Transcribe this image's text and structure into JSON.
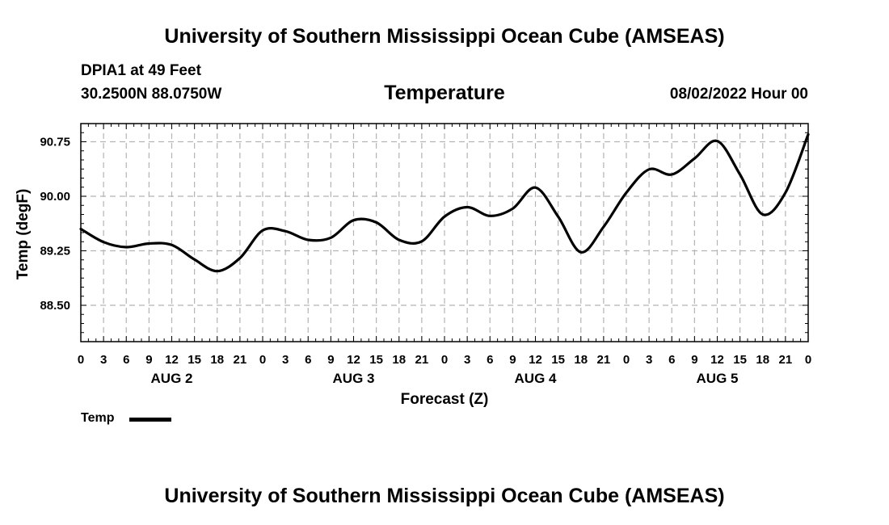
{
  "titles": {
    "top": "University of Southern Mississippi Ocean Cube (AMSEAS)",
    "bottom": "University of Southern Mississippi Ocean Cube (AMSEAS)"
  },
  "header": {
    "station": "DPIA1 at 49 Feet",
    "coords": "30.2500N  88.0750W",
    "variable": "Temperature",
    "datestamp": "08/02/2022 Hour 00"
  },
  "legend": {
    "label": "Temp"
  },
  "colors": {
    "line": "#000000",
    "grid": "#b4b4b4"
  },
  "chart_data": {
    "type": "line",
    "title": "Temperature",
    "xlabel": "Forecast (Z)",
    "ylabel": "Temp (degF)",
    "xlim": [
      0,
      96
    ],
    "ylim": [
      88.0,
      91.0
    ],
    "yticks": [
      "88.50",
      "89.25",
      "90.00",
      "90.75"
    ],
    "ytick_values": [
      88.5,
      89.25,
      90.0,
      90.75
    ],
    "xtick_labels": [
      "0",
      "3",
      "6",
      "9",
      "12",
      "15",
      "18",
      "21",
      "0",
      "3",
      "6",
      "9",
      "12",
      "15",
      "18",
      "21",
      "0",
      "3",
      "6",
      "9",
      "12",
      "15",
      "18",
      "21",
      "0",
      "3",
      "6",
      "9",
      "12",
      "15",
      "18",
      "21",
      "0"
    ],
    "day_labels": [
      {
        "label": "AUG 2",
        "hour": 12
      },
      {
        "label": "AUG 3",
        "hour": 36
      },
      {
        "label": "AUG 4",
        "hour": 60
      },
      {
        "label": "AUG 5",
        "hour": 84
      }
    ],
    "grid": true,
    "series": [
      {
        "name": "Temp",
        "x": [
          0,
          3,
          6,
          9,
          12,
          15,
          18,
          21,
          24,
          27,
          30,
          33,
          36,
          39,
          42,
          45,
          48,
          51,
          54,
          57,
          60,
          63,
          66,
          69,
          72,
          75,
          78,
          81,
          84,
          87,
          90,
          93,
          96
        ],
        "values": [
          89.55,
          89.37,
          89.3,
          89.35,
          89.33,
          89.13,
          88.97,
          89.15,
          89.53,
          89.52,
          89.4,
          89.43,
          89.67,
          89.64,
          89.4,
          89.38,
          89.72,
          89.85,
          89.73,
          89.83,
          90.12,
          89.72,
          89.23,
          89.58,
          90.05,
          90.37,
          90.3,
          90.52,
          90.76,
          90.3,
          89.75,
          90.05,
          90.85
        ]
      }
    ]
  }
}
